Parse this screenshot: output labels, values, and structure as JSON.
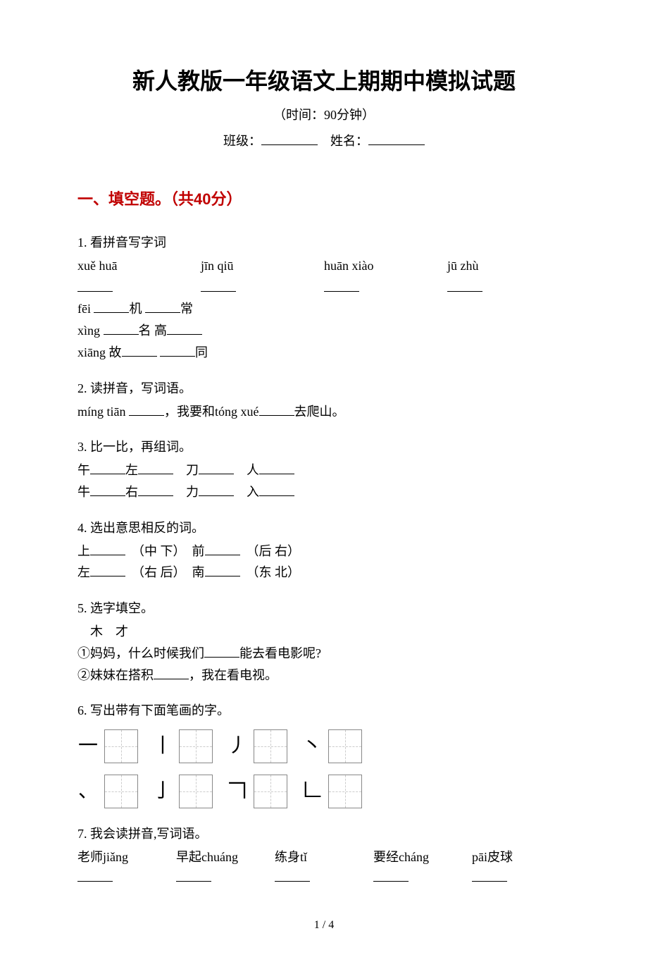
{
  "title": "新人教版一年级语文上期期中模拟试题",
  "time_label": "（时间：90分钟）",
  "class_label": "班级：",
  "name_label": "姓名：",
  "section1": {
    "header": "一、填空题。（共40分）"
  },
  "q1": {
    "label": "1. 看拼音写字词",
    "pinyin": [
      "xuě huā",
      "jīn qiū",
      "huān xiào",
      "jū zhù"
    ],
    "line2_a": "fēi",
    "line2_b": "机",
    "line2_c": "常",
    "line3_a": "xìng",
    "line3_b": "名  高",
    "line4_a": "xiāng  故",
    "line4_b": "同"
  },
  "q2": {
    "label": "2. 读拼音，写词语。",
    "text_a": "míng tiān",
    "text_b": "，我要和tóng xué",
    "text_c": "去爬山。"
  },
  "q3": {
    "label": "3. 比一比，再组词。",
    "row1_a": "午",
    "row1_b": "左",
    "row1_c": "刀",
    "row1_d": "人",
    "row2_a": "牛",
    "row2_b": "右",
    "row2_c": "力",
    "row2_d": "入"
  },
  "q4": {
    "label": "4. 选出意思相反的词。",
    "row1_a": "上",
    "row1_b": "（中 下）",
    "row1_c": "前",
    "row1_d": "（后 右）",
    "row2_a": "左",
    "row2_b": "（右 后）",
    "row2_c": "南",
    "row2_d": "（东 北）"
  },
  "q5": {
    "label": "5. 选字填空。",
    "options": "　木　才",
    "line1_a": "①妈妈，什么时候我们",
    "line1_b": "能去看电影呢?",
    "line2_a": "②妹妹在搭积",
    "line2_b": "，我在看电视。"
  },
  "q6": {
    "label": "6. 写出带有下面笔画的字。",
    "strokes_row1": [
      "一",
      "丨",
      "丿",
      "丶"
    ],
    "strokes_row2": [
      "、",
      "亅",
      "𠃍",
      "𠃊"
    ]
  },
  "q7": {
    "label": "7. 我会读拼音,写词语。",
    "items": [
      "老师jiǎng",
      "早起chuáng",
      "练身tǐ",
      "要经cháng",
      "pāi皮球"
    ]
  },
  "page_num": "1 / 4"
}
